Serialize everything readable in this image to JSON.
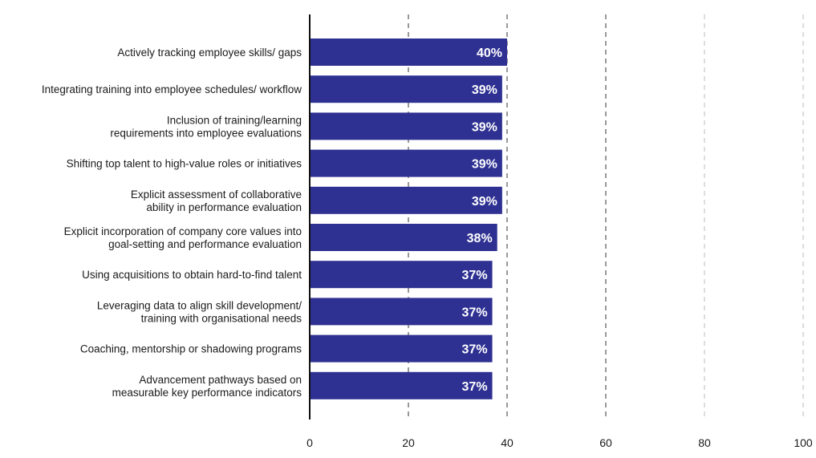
{
  "chart_data": {
    "type": "bar",
    "orientation": "horizontal",
    "categories": [
      [
        "Actively tracking employee skills/ gaps"
      ],
      [
        "Integrating training into employee schedules/ workflow"
      ],
      [
        "Inclusion of training/learning",
        "requirements into employee evaluations"
      ],
      [
        "Shifting top talent to high-value roles or initiatives"
      ],
      [
        "Explicit assessment of collaborative",
        "ability in performance evaluation"
      ],
      [
        "Explicit incorporation of company core values into",
        "goal-setting and performance evaluation"
      ],
      [
        "Using acquisitions to obtain hard-to-find talent"
      ],
      [
        "Leveraging data to align skill development/",
        "training with organisational needs"
      ],
      [
        "Coaching, mentorship or shadowing programs"
      ],
      [
        "Advancement pathways based on",
        "measurable key performance indicators"
      ]
    ],
    "values": [
      40,
      39,
      39,
      39,
      39,
      38,
      37,
      37,
      37,
      37
    ],
    "data_labels": [
      "40%",
      "39%",
      "39%",
      "39%",
      "39%",
      "38%",
      "37%",
      "37%",
      "37%",
      "37%"
    ],
    "xlim": [
      0,
      100
    ],
    "xticks": [
      0,
      20,
      40,
      60,
      80,
      100
    ],
    "xtick_labels": [
      "0",
      "20",
      "40",
      "60",
      "80",
      "100"
    ],
    "grid": "vertical dashed",
    "colors": {
      "bar": "#2e3192",
      "grid": "#333333",
      "axis": "#111111"
    }
  }
}
